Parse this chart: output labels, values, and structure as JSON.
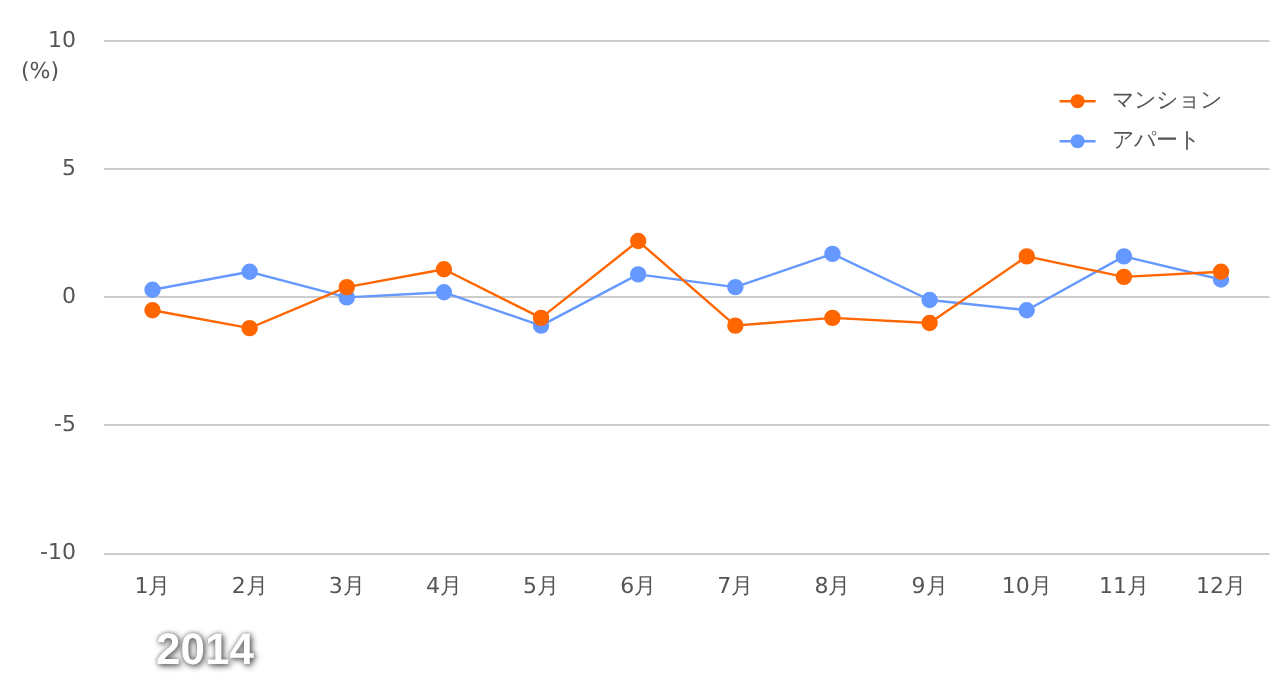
{
  "chart_data": {
    "type": "line",
    "ylabel": "(%)",
    "categories": [
      "1月",
      "2月",
      "3月",
      "4月",
      "5月",
      "6月",
      "7月",
      "8月",
      "9月",
      "10月",
      "11月",
      "12月"
    ],
    "series": [
      {
        "name": "マンション",
        "color": "#ff6600",
        "values": [
          -0.5,
          -1.2,
          0.4,
          1.1,
          -0.8,
          2.2,
          -1.1,
          -0.8,
          -1.0,
          1.6,
          0.8,
          1.0
        ]
      },
      {
        "name": "アパート",
        "color": "#6699ff",
        "values": [
          0.3,
          1.0,
          0.0,
          0.2,
          -1.1,
          0.9,
          0.4,
          1.7,
          -0.1,
          -0.5,
          1.6,
          0.7
        ]
      }
    ],
    "ylim": [
      -10,
      10
    ],
    "yticks": [
      -10,
      -5,
      0,
      5,
      10
    ],
    "grid": "y",
    "legend": "top right",
    "marker": "circle",
    "line_style": "solid",
    "annotations": [
      "2014"
    ]
  }
}
